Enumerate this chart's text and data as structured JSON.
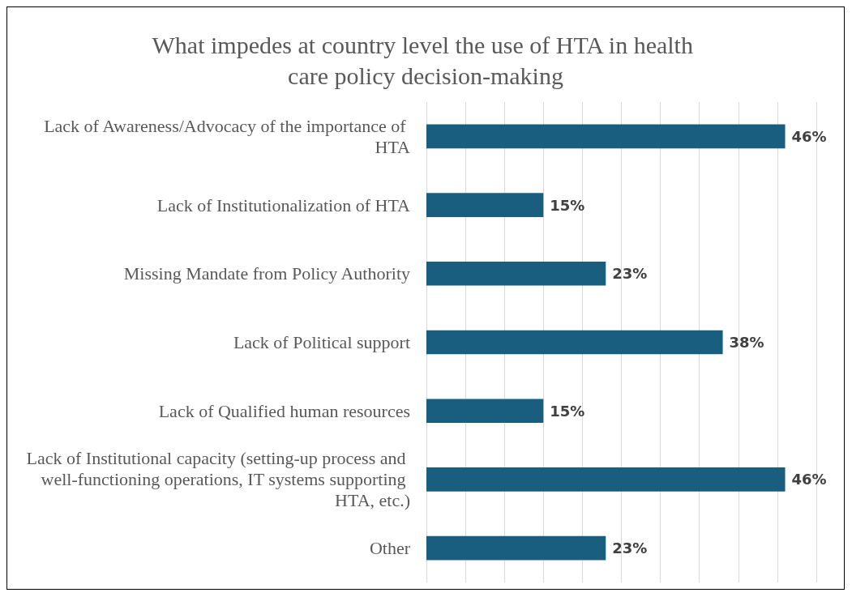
{
  "chart_data": {
    "type": "bar",
    "orientation": "horizontal",
    "title": "What impedes at country level the use of HTA in health care policy decision-making",
    "categories": [
      "Lack of Awareness/Advocacy of the importance of HTA",
      "Lack of Institutionalization of HTA",
      "Missing Mandate from Policy Authority",
      "Lack of Political support",
      "Lack of Qualified human resources",
      "Lack of Institutional capacity (setting-up process and well-functioning operations, IT systems supporting HTA, etc.)",
      "Other"
    ],
    "values": [
      46,
      15,
      23,
      38,
      15,
      46,
      23
    ],
    "value_labels": [
      "46%",
      "15%",
      "23%",
      "38%",
      "15%",
      "46%",
      "23%"
    ],
    "color": "#1a5e7f",
    "xlim": [
      0,
      50
    ],
    "xticks": [
      {
        "value": 0,
        "label": null
      },
      {
        "value": 5,
        "label": null
      },
      {
        "value": 10,
        "label": null
      },
      {
        "value": 15,
        "label": null
      },
      {
        "value": 20,
        "label": null
      },
      {
        "value": 25,
        "label": null
      },
      {
        "value": 30,
        "label": null
      },
      {
        "value": 35,
        "label": null
      },
      {
        "value": 40,
        "label": null
      },
      {
        "value": 45,
        "label": null
      },
      {
        "value": 50,
        "label": null
      }
    ],
    "grid": "x",
    "tick_labels": "y"
  }
}
